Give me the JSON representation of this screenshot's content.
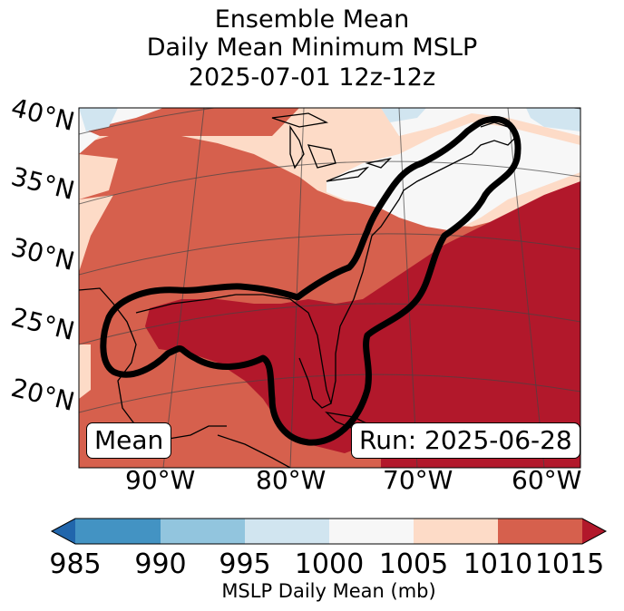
{
  "title": {
    "line1": "Ensemble Mean",
    "line2": "Daily Mean Minimum MSLP",
    "line3": "2025-07-01 12z-12z"
  },
  "map": {
    "lat_labels": [
      "40°N",
      "35°N",
      "30°N",
      "25°N",
      "20°N"
    ],
    "lon_labels": [
      "90°W",
      "80°W",
      "70°W",
      "60°W"
    ],
    "mean_label": "Mean",
    "run_label": "Run: 2025-06-28"
  },
  "colorbar": {
    "ticks": [
      "985",
      "990",
      "995",
      "1000",
      "1005",
      "1010",
      "1015"
    ],
    "label": "MSLP Daily Mean (mb)",
    "colors": [
      "#2166ac",
      "#4393c3",
      "#92c5de",
      "#d1e5f0",
      "#f7f7f7",
      "#fddbc7",
      "#d6604d",
      "#b2182b"
    ]
  },
  "chart_data": {
    "type": "heatmap",
    "title": "Ensemble Mean Daily Mean Minimum MSLP 2025-07-01 12z-12z",
    "variable": "MSLP Daily Mean (mb)",
    "levels": [
      985,
      990,
      995,
      1000,
      1005,
      1010,
      1015
    ],
    "extend": "both",
    "overlay": "black contour outlining the ensemble mean system track"
  }
}
